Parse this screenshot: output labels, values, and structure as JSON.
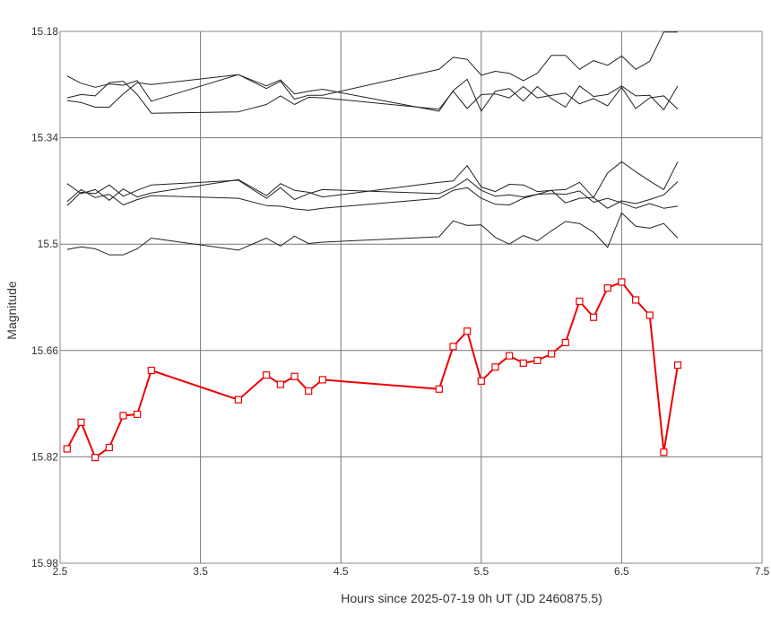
{
  "chart_data": {
    "type": "line",
    "xlabel": "Hours since 2025-07-19 0h UT (JD 2460875.5)",
    "ylabel": "Magnitude",
    "xlim": [
      2.5,
      7.5
    ],
    "ylim": [
      15.18,
      15.98
    ],
    "y_inverted": true,
    "x_ticks": [
      "2.5",
      "3.5",
      "4.5",
      "5.5",
      "6.5",
      "7.5"
    ],
    "y_ticks": [
      "15.18",
      "15.34",
      "15.5",
      "15.66",
      "15.82",
      "15.98"
    ],
    "grid": true,
    "colors": {
      "target": "#ee0000",
      "comparison": "#222222",
      "grid": "#777777",
      "frame": "#888888"
    },
    "x": [
      2.55,
      2.65,
      2.75,
      2.85,
      2.95,
      3.05,
      3.15,
      3.77,
      3.97,
      4.07,
      4.17,
      4.27,
      4.37,
      5.2,
      5.3,
      5.4,
      5.5,
      5.6,
      5.7,
      5.8,
      5.9,
      6.0,
      6.1,
      6.2,
      6.3,
      6.4,
      6.5,
      6.6,
      6.7,
      6.8,
      6.9
    ],
    "series": [
      {
        "role": "target",
        "marker": "square",
        "values": [
          15.808,
          15.768,
          15.821,
          15.806,
          15.758,
          15.756,
          15.69,
          15.734,
          15.697,
          15.711,
          15.699,
          15.721,
          15.704,
          15.718,
          15.654,
          15.631,
          15.706,
          15.685,
          15.668,
          15.679,
          15.675,
          15.665,
          15.648,
          15.586,
          15.61,
          15.566,
          15.557,
          15.584,
          15.607,
          15.813,
          15.682
        ]
      },
      {
        "role": "comparison",
        "values": [
          15.247,
          15.258,
          15.264,
          15.259,
          15.261,
          15.254,
          15.285,
          15.245,
          15.266,
          15.255,
          15.282,
          15.276,
          15.276,
          15.237,
          15.219,
          15.222,
          15.246,
          15.24,
          15.243,
          15.254,
          15.243,
          15.216,
          15.216,
          15.237,
          15.224,
          15.231,
          15.217,
          15.237,
          15.225,
          15.181,
          15.181
        ]
      },
      {
        "role": "comparison",
        "values": [
          15.284,
          15.287,
          15.294,
          15.294,
          15.274,
          15.257,
          15.26,
          15.245,
          15.262,
          15.253,
          15.274,
          15.27,
          15.267,
          15.3,
          15.269,
          15.252,
          15.3,
          15.27,
          15.266,
          15.285,
          15.263,
          15.281,
          15.294,
          15.262,
          15.278,
          15.275,
          15.262,
          15.277,
          15.276,
          15.298,
          15.262
        ]
      },
      {
        "role": "comparison",
        "values": [
          15.28,
          15.275,
          15.277,
          15.257,
          15.255,
          15.275,
          15.303,
          15.301,
          15.29,
          15.277,
          15.29,
          15.279,
          15.28,
          15.297,
          15.27,
          15.296,
          15.275,
          15.274,
          15.28,
          15.263,
          15.28,
          15.276,
          15.273,
          15.289,
          15.281,
          15.292,
          15.264,
          15.296,
          15.28,
          15.277,
          15.297
        ]
      },
      {
        "role": "comparison",
        "values": [
          15.409,
          15.424,
          15.418,
          15.434,
          15.417,
          15.429,
          15.423,
          15.403,
          15.427,
          15.409,
          15.419,
          15.422,
          15.429,
          15.407,
          15.405,
          15.382,
          15.414,
          15.421,
          15.41,
          15.411,
          15.421,
          15.419,
          15.418,
          15.407,
          15.43,
          15.393,
          15.376,
          15.391,
          15.405,
          15.418,
          15.376
        ]
      },
      {
        "role": "comparison",
        "values": [
          15.442,
          15.422,
          15.424,
          15.411,
          15.428,
          15.419,
          15.411,
          15.404,
          15.431,
          15.415,
          15.433,
          15.424,
          15.418,
          15.424,
          15.415,
          15.402,
          15.419,
          15.428,
          15.426,
          15.429,
          15.425,
          15.419,
          15.438,
          15.431,
          15.43,
          15.446,
          15.435,
          15.439,
          15.433,
          15.426,
          15.406
        ]
      },
      {
        "role": "comparison",
        "values": [
          15.436,
          15.418,
          15.43,
          15.425,
          15.441,
          15.433,
          15.427,
          15.431,
          15.442,
          15.443,
          15.447,
          15.449,
          15.446,
          15.431,
          15.419,
          15.415,
          15.431,
          15.44,
          15.441,
          15.431,
          15.425,
          15.424,
          15.425,
          15.42,
          15.437,
          15.431,
          15.438,
          15.446,
          15.439,
          15.446,
          15.443
        ]
      },
      {
        "role": "comparison",
        "values": [
          15.508,
          15.504,
          15.507,
          15.516,
          15.516,
          15.507,
          15.491,
          15.509,
          15.491,
          15.503,
          15.488,
          15.499,
          15.497,
          15.489,
          15.465,
          15.472,
          15.471,
          15.49,
          15.5,
          15.487,
          15.495,
          15.48,
          15.466,
          15.469,
          15.482,
          15.505,
          15.453,
          15.473,
          15.476,
          15.469,
          15.491
        ]
      }
    ]
  }
}
